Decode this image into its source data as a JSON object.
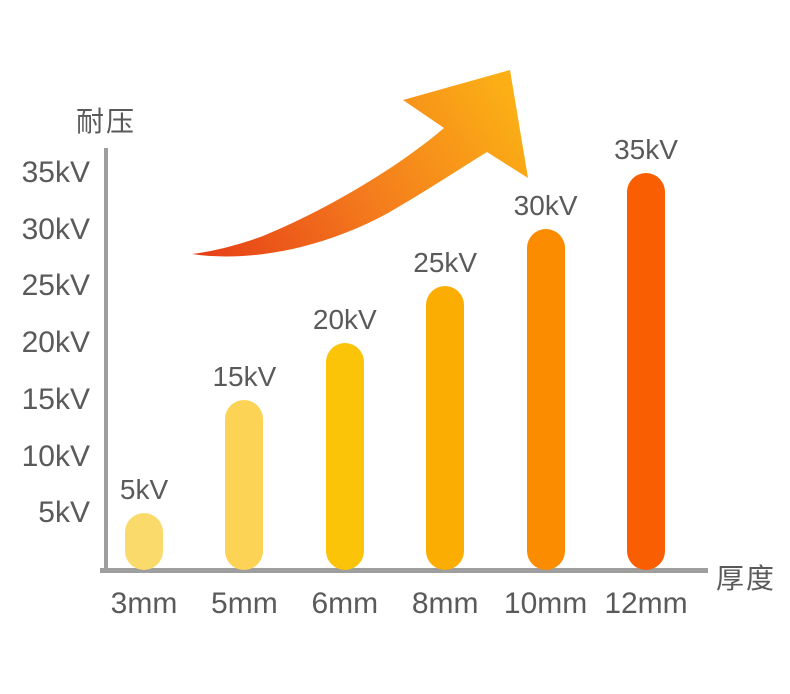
{
  "page": {
    "background": "#FFFFFF"
  },
  "chart_data": {
    "type": "bar",
    "title": "",
    "ylabel": "耐压",
    "xlabel": "厚度",
    "categories": [
      "3mm",
      "5mm",
      "6mm",
      "8mm",
      "10mm",
      "12mm"
    ],
    "values": [
      5,
      15,
      20,
      25,
      30,
      35
    ],
    "value_labels": [
      "5kV",
      "15kV",
      "20kV",
      "25kV",
      "30kV",
      "35kV"
    ],
    "yticks": [
      {
        "value": 5,
        "label": "5kV"
      },
      {
        "value": 10,
        "label": "10kV"
      },
      {
        "value": 15,
        "label": "15kV"
      },
      {
        "value": 20,
        "label": "20kV"
      },
      {
        "value": 25,
        "label": "25kV"
      },
      {
        "value": 30,
        "label": "30kV"
      },
      {
        "value": 35,
        "label": "35kV"
      }
    ],
    "ylim": [
      0,
      37.5
    ],
    "grid": false,
    "legend": null,
    "bar_colors": [
      "#FBDA6C",
      "#FDD355",
      "#FCC408",
      "#FCAD02",
      "#FB8C00",
      "#F95F02"
    ],
    "axis_color": "#9E9E9E",
    "text_color": "#5A5A5A",
    "annotation": {
      "shape": "upward-curved-growth-arrow",
      "gradient": [
        "#E63E17",
        "#F47B1D",
        "#FBAF15"
      ]
    }
  }
}
